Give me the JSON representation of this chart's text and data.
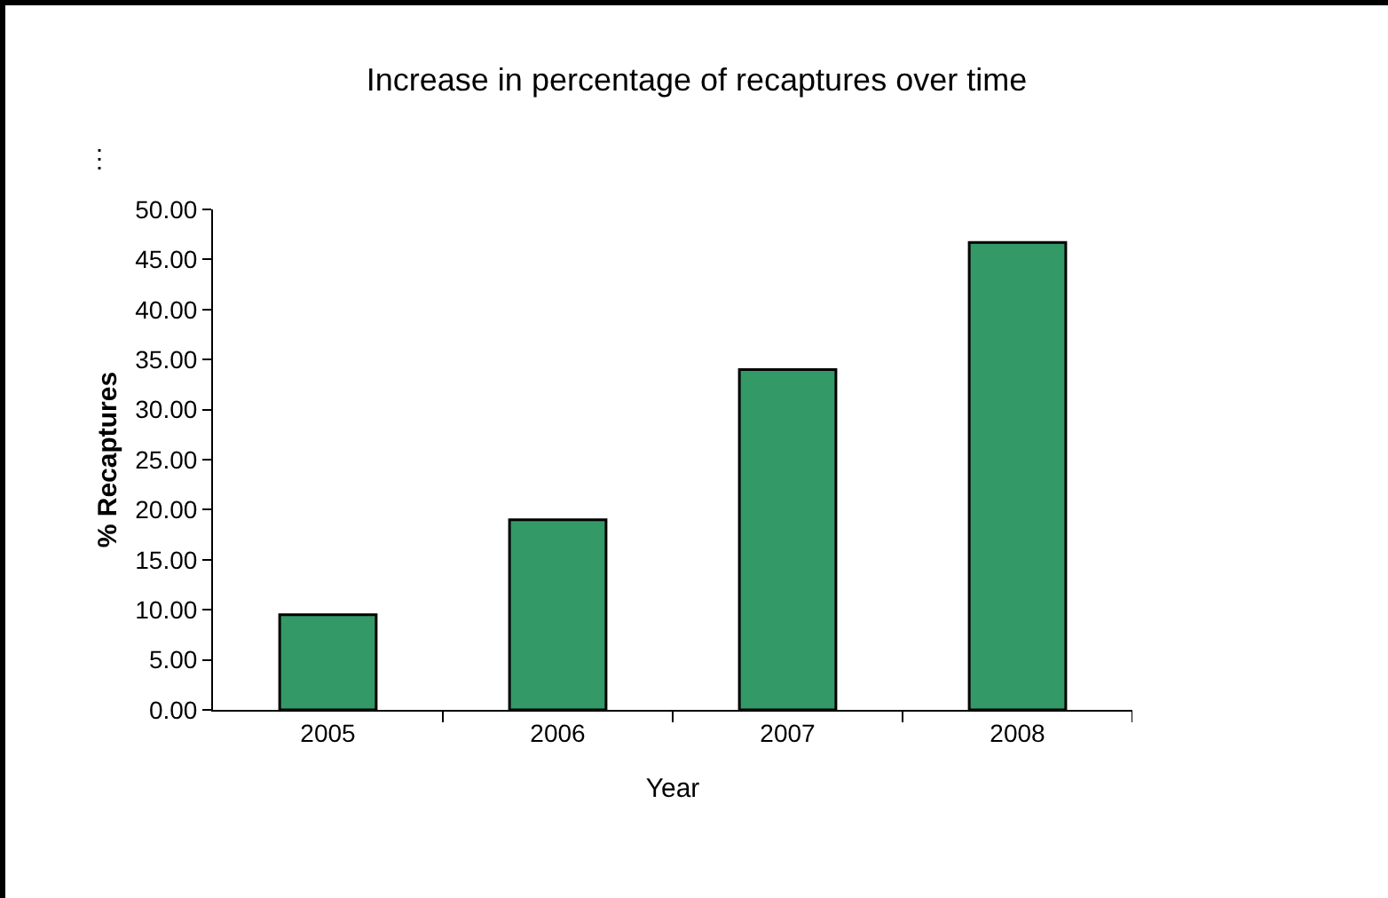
{
  "chart_data": {
    "type": "bar",
    "title": "Increase in percentage of recaptures over time",
    "xlabel": "Year",
    "ylabel": "% Recaptures",
    "categories": [
      "2005",
      "2006",
      "2007",
      "2008"
    ],
    "values": [
      9.5,
      19.0,
      34.0,
      46.7
    ],
    "color": "#339966",
    "ylim": [
      0,
      50
    ],
    "yticks": [
      {
        "value": 0,
        "label": "0.00"
      },
      {
        "value": 5,
        "label": "5.00"
      },
      {
        "value": 10,
        "label": "10.00"
      },
      {
        "value": 15,
        "label": "15.00"
      },
      {
        "value": 20,
        "label": "20.00"
      },
      {
        "value": 25,
        "label": "25.00"
      },
      {
        "value": 30,
        "label": "30.00"
      },
      {
        "value": 35,
        "label": "35.00"
      },
      {
        "value": 40,
        "label": "40.00"
      },
      {
        "value": 45,
        "label": "45.00"
      },
      {
        "value": 50,
        "label": "50.00"
      }
    ],
    "annotations": [
      "⋮"
    ]
  }
}
